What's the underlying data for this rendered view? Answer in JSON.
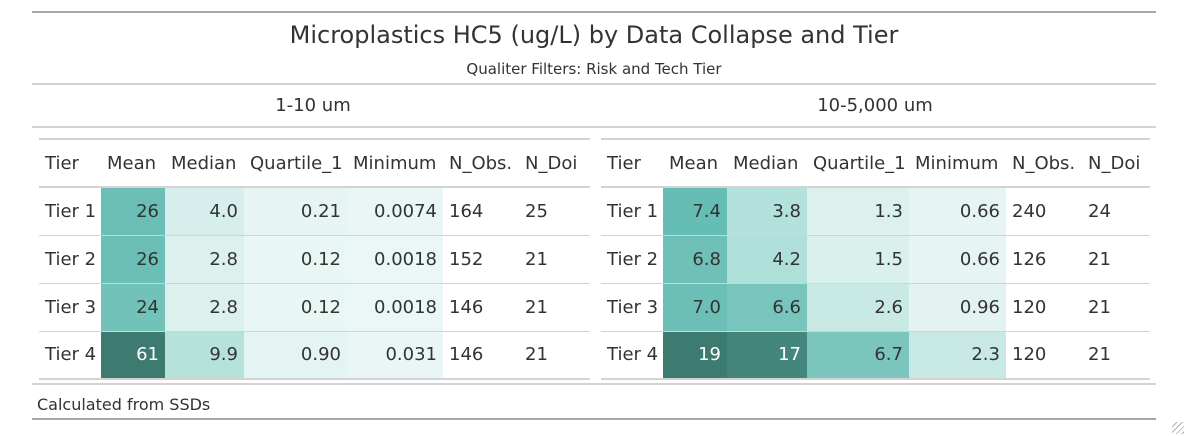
{
  "title": "Microplastics HC5 (ug/L) by Data Collapse and Tier",
  "subtitle": "Qualiter Filters: Risk and Tech Tier",
  "footnote": "Calculated from SSDs",
  "columns": [
    "Tier",
    "Mean",
    "Median",
    "Quartile_1",
    "Minimum",
    "N_Obs.",
    "N_Doi"
  ],
  "panels": [
    {
      "label": "1-10 um",
      "rows": [
        {
          "tier": "Tier 1",
          "mean": "26",
          "median": "4.0",
          "q1": "0.21",
          "min": "0.0074",
          "nobs": "164",
          "ndoi": "25",
          "colors": {
            "mean": "#6cbfb7",
            "median": "#d6efec",
            "q1": "#e6f5f3",
            "min": "#eaf6f5"
          }
        },
        {
          "tier": "Tier 2",
          "mean": "26",
          "median": "2.8",
          "q1": "0.12",
          "min": "0.0018",
          "nobs": "152",
          "ndoi": "21",
          "colors": {
            "mean": "#6cbfb7",
            "median": "#dcf1ee",
            "q1": "#e8f6f4",
            "min": "#ebf7f6"
          }
        },
        {
          "tier": "Tier 3",
          "mean": "24",
          "median": "2.8",
          "q1": "0.12",
          "min": "0.0018",
          "nobs": "146",
          "ndoi": "21",
          "colors": {
            "mean": "#72c2ba",
            "median": "#dcf1ee",
            "q1": "#e8f6f4",
            "min": "#ebf7f6"
          }
        },
        {
          "tier": "Tier 4",
          "mean": "61",
          "median": "9.9",
          "q1": "0.90",
          "min": "0.031",
          "nobs": "146",
          "ndoi": "21",
          "colors": {
            "mean": "#3d7a6f",
            "median": "#b6e2dc",
            "q1": "#e3f4f2",
            "min": "#eaf6f5"
          }
        }
      ]
    },
    {
      "label": "10-5,000 um",
      "rows": [
        {
          "tier": "Tier 1",
          "mean": "7.4",
          "median": "3.8",
          "q1": "1.3",
          "min": "0.66",
          "nobs": "240",
          "ndoi": "24",
          "colors": {
            "mean": "#66bdb5",
            "median": "#b3e1db",
            "q1": "#dcf1ee",
            "min": "#e6f5f3"
          }
        },
        {
          "tier": "Tier 2",
          "mean": "6.8",
          "median": "4.2",
          "q1": "1.5",
          "min": "0.66",
          "nobs": "126",
          "ndoi": "21",
          "colors": {
            "mean": "#6ec0b8",
            "median": "#aedfd9",
            "q1": "#d9f0ed",
            "min": "#e6f5f3"
          }
        },
        {
          "tier": "Tier 3",
          "mean": "7.0",
          "median": "6.6",
          "q1": "2.6",
          "min": "0.96",
          "nobs": "120",
          "ndoi": "21",
          "colors": {
            "mean": "#6bbfb7",
            "median": "#78c5bd",
            "q1": "#c9e9e5",
            "min": "#e2f3f1"
          }
        },
        {
          "tier": "Tier 4",
          "mean": "19",
          "median": "17",
          "q1": "6.7",
          "min": "2.3",
          "nobs": "120",
          "ndoi": "21",
          "colors": {
            "mean": "#3d7a6f",
            "median": "#44867b",
            "q1": "#7ac6bd",
            "min": "#c7e8e4"
          }
        }
      ]
    }
  ]
}
